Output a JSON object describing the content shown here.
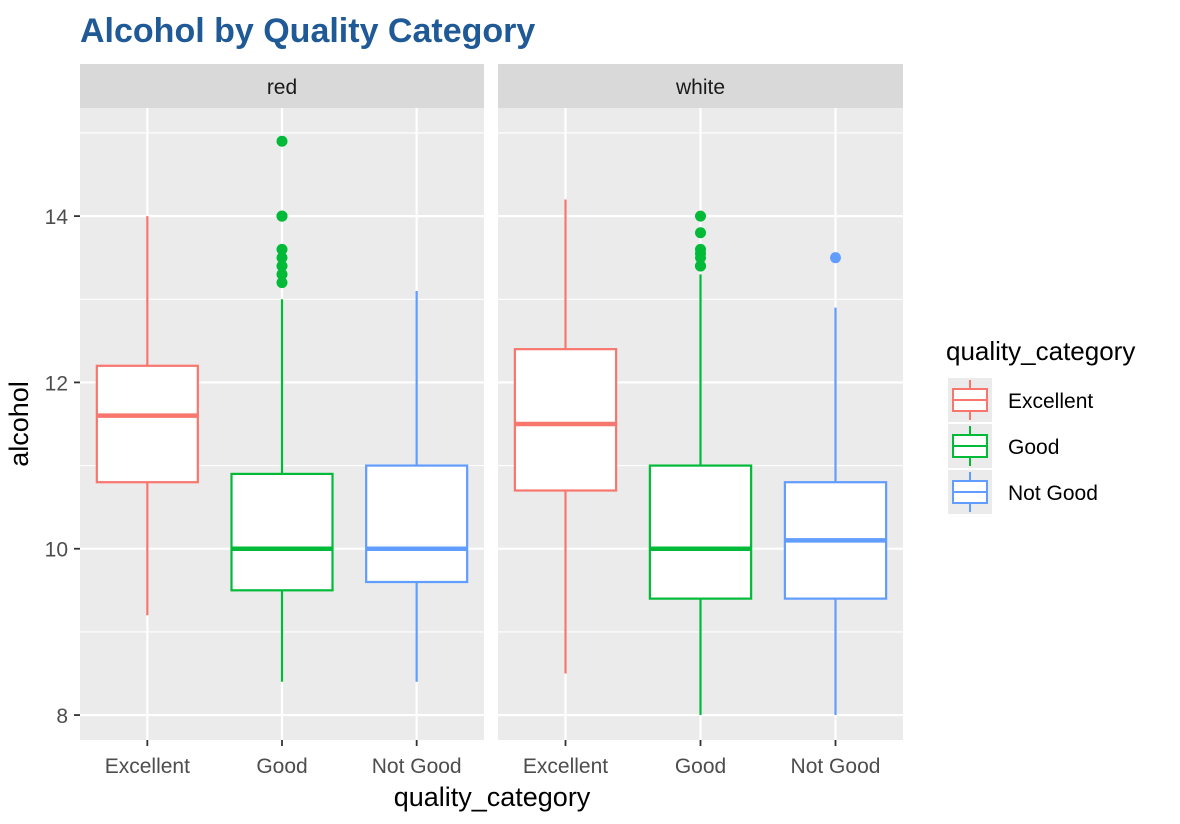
{
  "chart_data": {
    "type": "boxplot",
    "title": "Alcohol by Quality Category",
    "xlabel": "quality_category",
    "ylabel": "alcohol",
    "categories": [
      "Excellent",
      "Good",
      "Not Good"
    ],
    "ylim": [
      7.7,
      15.3
    ],
    "yticks": [
      8,
      10,
      12,
      14
    ],
    "legend": {
      "title": "quality_category",
      "placement": "right",
      "entries": [
        "Excellent",
        "Good",
        "Not Good"
      ]
    },
    "colors": {
      "Excellent": "#F8766D",
      "Good": "#00BA38",
      "Not Good": "#619CFF",
      "panel_bg": "#EBEBEB",
      "strip_bg": "#D9D9D9",
      "grid": "#FFFFFF",
      "title": "#1F5A96"
    },
    "facets": [
      {
        "label": "red",
        "boxes": [
          {
            "category": "Excellent",
            "low": 9.2,
            "q1": 10.8,
            "median": 11.6,
            "q3": 12.2,
            "high": 14.0,
            "outliers": []
          },
          {
            "category": "Good",
            "low": 8.4,
            "q1": 9.5,
            "median": 10.0,
            "q3": 10.9,
            "high": 13.0,
            "outliers": [
              13.2,
              13.3,
              13.4,
              13.5,
              13.6,
              14.0,
              14.0,
              14.9
            ]
          },
          {
            "category": "Not Good",
            "low": 8.4,
            "q1": 9.6,
            "median": 10.0,
            "q3": 11.0,
            "high": 13.1,
            "outliers": []
          }
        ]
      },
      {
        "label": "white",
        "boxes": [
          {
            "category": "Excellent",
            "low": 8.5,
            "q1": 10.7,
            "median": 11.5,
            "q3": 12.4,
            "high": 14.2,
            "outliers": []
          },
          {
            "category": "Good",
            "low": 8.0,
            "q1": 9.4,
            "median": 10.0,
            "q3": 11.0,
            "high": 13.3,
            "outliers": [
              13.4,
              13.4,
              13.5,
              13.55,
              13.6,
              13.8,
              14.0
            ]
          },
          {
            "category": "Not Good",
            "low": 8.0,
            "q1": 9.4,
            "median": 10.1,
            "q3": 10.8,
            "high": 12.9,
            "outliers": [
              13.5
            ]
          }
        ]
      }
    ]
  }
}
